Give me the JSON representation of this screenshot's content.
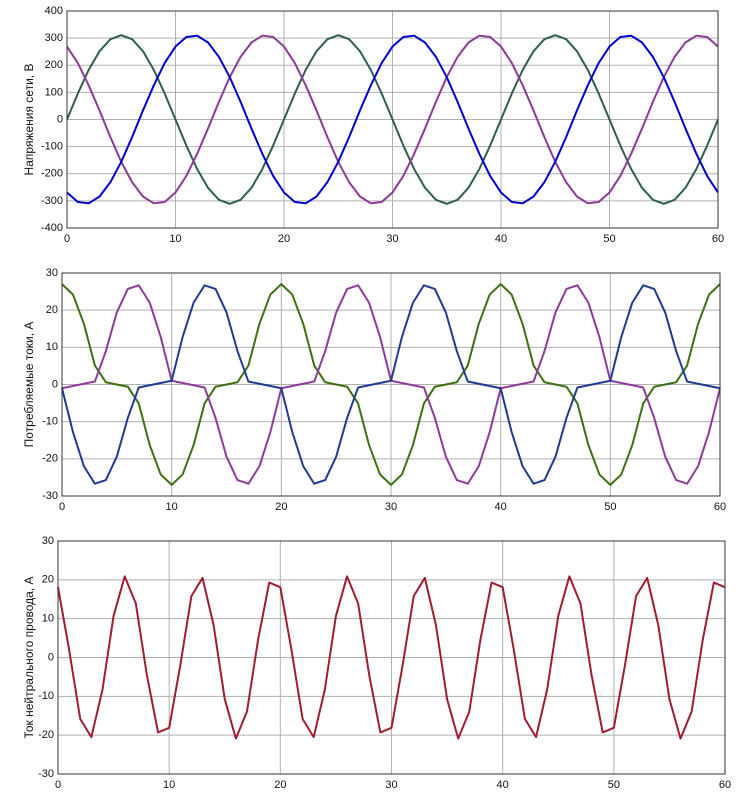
{
  "chart_data": [
    {
      "type": "line",
      "ylabel": "Напряжения сети, В",
      "x": [
        0,
        1,
        2,
        3,
        4,
        5,
        6,
        7,
        8,
        9,
        10,
        11,
        12,
        13,
        14,
        15,
        16,
        17,
        18,
        19,
        20,
        21,
        22,
        23,
        24,
        25,
        26,
        27,
        28,
        29,
        30,
        31,
        32,
        33,
        34,
        35,
        36,
        37,
        38,
        39,
        40,
        41,
        42,
        43,
        44,
        45,
        46,
        47,
        48,
        49,
        50,
        51,
        52,
        53,
        54,
        55,
        56,
        57,
        58,
        59,
        60
      ],
      "xlim": [
        0,
        60
      ],
      "xticks": [
        0,
        10,
        20,
        30,
        40,
        50,
        60
      ],
      "ylim": [
        -400,
        400
      ],
      "yticks": [
        -400,
        -300,
        -200,
        -100,
        0,
        100,
        200,
        300,
        400
      ],
      "grid": true,
      "series": [
        {
          "color": "#2e5e4e",
          "values": [
            0,
            96,
            183,
            252,
            296,
            311,
            296,
            252,
            183,
            96,
            0,
            -96,
            -183,
            -252,
            -296,
            -311,
            -296,
            -252,
            -183,
            -96,
            0,
            96,
            183,
            252,
            296,
            311,
            296,
            252,
            183,
            96,
            0,
            -96,
            -183,
            -252,
            -296,
            -311,
            -296,
            -252,
            -183,
            -96,
            0,
            96,
            183,
            252,
            296,
            311,
            296,
            252,
            183,
            96,
            0,
            -96,
            -183,
            -252,
            -296,
            -311,
            -296,
            -252,
            -183,
            -96,
            0
          ]
        },
        {
          "color": "#8b3a96",
          "values": [
            269,
            208,
            126,
            33,
            -65,
            -156,
            -231,
            -284,
            -309,
            -304,
            -269,
            -208,
            -126,
            -33,
            65,
            156,
            231,
            284,
            309,
            304,
            269,
            208,
            126,
            33,
            -65,
            -156,
            -231,
            -284,
            -309,
            -304,
            -269,
            -208,
            -126,
            -33,
            65,
            156,
            231,
            284,
            309,
            304,
            269,
            208,
            126,
            33,
            -65,
            -156,
            -231,
            -284,
            -309,
            -304,
            -269,
            -208,
            -126,
            -33,
            65,
            156,
            231,
            284,
            309,
            304,
            269
          ]
        },
        {
          "color": "#0000cc",
          "values": [
            -269,
            -304,
            -309,
            -284,
            -231,
            -156,
            -65,
            33,
            126,
            208,
            269,
            304,
            309,
            284,
            231,
            156,
            65,
            -33,
            -126,
            -208,
            -269,
            -304,
            -309,
            -284,
            -231,
            -156,
            -65,
            33,
            126,
            208,
            269,
            304,
            309,
            284,
            231,
            156,
            65,
            -33,
            -126,
            -208,
            -269,
            -304,
            -309,
            -284,
            -231,
            -156,
            -65,
            33,
            126,
            208,
            269,
            304,
            309,
            284,
            231,
            156,
            65,
            -33,
            -126,
            -208,
            -269
          ]
        }
      ]
    },
    {
      "type": "line",
      "ylabel": "Потребляемые токи, А",
      "x": [
        0,
        1,
        2,
        3,
        4,
        5,
        6,
        7,
        8,
        9,
        10,
        11,
        12,
        13,
        14,
        15,
        16,
        17,
        18,
        19,
        20,
        21,
        22,
        23,
        24,
        25,
        26,
        27,
        28,
        29,
        30,
        31,
        32,
        33,
        34,
        35,
        36,
        37,
        38,
        39,
        40,
        41,
        42,
        43,
        44,
        45,
        46,
        47,
        48,
        49,
        50,
        51,
        52,
        53,
        54,
        55,
        56,
        57,
        58,
        59,
        60
      ],
      "xlim": [
        0,
        60
      ],
      "xticks": [
        0,
        10,
        20,
        30,
        40,
        50,
        60
      ],
      "ylim": [
        -30,
        30
      ],
      "yticks": [
        -30,
        -20,
        -10,
        0,
        10,
        20,
        30
      ],
      "grid": true,
      "series": [
        {
          "color": "#3d7010",
          "values": [
            27,
            24.2,
            16.3,
            5.1,
            0.6,
            0,
            -0.6,
            -5.1,
            -16.3,
            -24.2,
            -27,
            -24.2,
            -16.3,
            -5.1,
            -0.6,
            0,
            0.6,
            5.1,
            16.3,
            24.2,
            27,
            24.2,
            16.3,
            5.1,
            0.6,
            0,
            -0.6,
            -5.1,
            -16.3,
            -24.2,
            -27,
            -24.2,
            -16.3,
            -5.1,
            -0.6,
            0,
            0.6,
            5.1,
            16.3,
            24.2,
            27,
            24.2,
            16.3,
            5.1,
            0.6,
            0,
            -0.6,
            -5.1,
            -16.3,
            -24.2,
            -27,
            -24.2,
            -16.3,
            -5.1,
            -0.6,
            0,
            0.6,
            5.1,
            16.3,
            24.2,
            27
          ]
        },
        {
          "color": "#8e3a9a",
          "values": [
            -1,
            -0.4,
            0.2,
            0.8,
            9.0,
            19.4,
            25.7,
            26.7,
            22.0,
            12.8,
            1,
            0.4,
            -0.2,
            -0.8,
            -9.0,
            -19.4,
            -25.7,
            -26.7,
            -22.0,
            -12.8,
            -1,
            -0.4,
            0.2,
            0.8,
            9.0,
            19.4,
            25.7,
            26.7,
            22.0,
            12.8,
            1,
            0.4,
            -0.2,
            -0.8,
            -9.0,
            -19.4,
            -25.7,
            -26.7,
            -22.0,
            -12.8,
            -1,
            -0.4,
            0.2,
            0.8,
            9.0,
            19.4,
            25.7,
            26.7,
            22.0,
            12.8,
            1,
            0.4,
            -0.2,
            -0.8,
            -9.0,
            -19.4,
            -25.7,
            -26.7,
            -22.0,
            -12.8,
            -1
          ]
        },
        {
          "color": "#1f3a93",
          "values": [
            -1,
            -12.8,
            -22.0,
            -26.7,
            -25.7,
            -19.4,
            -9.0,
            -0.8,
            -0.2,
            0.4,
            1,
            12.8,
            22.0,
            26.7,
            25.7,
            19.4,
            9.0,
            0.8,
            0.2,
            -0.4,
            -1,
            -12.8,
            -22.0,
            -26.7,
            -25.7,
            -19.4,
            -9.0,
            -0.8,
            -0.2,
            0.4,
            1,
            12.8,
            22.0,
            26.7,
            25.7,
            19.4,
            9.0,
            0.8,
            0.2,
            -0.4,
            -1,
            -12.8,
            -22.0,
            -26.7,
            -25.7,
            -19.4,
            -9.0,
            -0.8,
            -0.2,
            0.4,
            1,
            12.8,
            22.0,
            26.7,
            25.7,
            19.4,
            9.0,
            0.8,
            0.2,
            -0.4,
            -1
          ]
        }
      ]
    },
    {
      "type": "line",
      "ylabel": "Ток нейтрального провода, А",
      "x": [
        0,
        1,
        2,
        3,
        4,
        5,
        6,
        7,
        8,
        9,
        10,
        11,
        12,
        13,
        14,
        15,
        16,
        17,
        18,
        19,
        20,
        21,
        22,
        23,
        24,
        25,
        26,
        27,
        28,
        29,
        30,
        31,
        32,
        33,
        34,
        35,
        36,
        37,
        38,
        39,
        40,
        41,
        42,
        43,
        44,
        45,
        46,
        47,
        48,
        49,
        50,
        51,
        52,
        53,
        54,
        55,
        56,
        57,
        58,
        59,
        60
      ],
      "xlim": [
        0,
        60
      ],
      "xticks": [
        0,
        10,
        20,
        30,
        40,
        50,
        60
      ],
      "ylim": [
        -30,
        30
      ],
      "yticks": [
        -30,
        -20,
        -10,
        0,
        10,
        20,
        30
      ],
      "grid": true,
      "series": [
        {
          "color": "#a01c30",
          "values": [
            18.1,
            2.0,
            -15.8,
            -20.5,
            -8.3,
            10.7,
            20.9,
            13.9,
            -4.6,
            -19.3,
            -18.1,
            -2.0,
            15.8,
            20.5,
            8.3,
            -10.7,
            -20.9,
            -13.9,
            4.6,
            19.3,
            18.1,
            2.0,
            -15.8,
            -20.5,
            -8.3,
            10.7,
            20.9,
            13.9,
            -4.6,
            -19.3,
            -18.1,
            -2.0,
            15.8,
            20.5,
            8.3,
            -10.7,
            -20.9,
            -13.9,
            4.6,
            19.3,
            18.1,
            2.0,
            -15.8,
            -20.5,
            -8.3,
            10.7,
            20.9,
            13.9,
            -4.6,
            -19.3,
            -18.1,
            -2.0,
            15.8,
            20.5,
            8.3,
            -10.7,
            -20.9,
            -13.9,
            4.6,
            19.3,
            18.1
          ]
        }
      ]
    }
  ]
}
